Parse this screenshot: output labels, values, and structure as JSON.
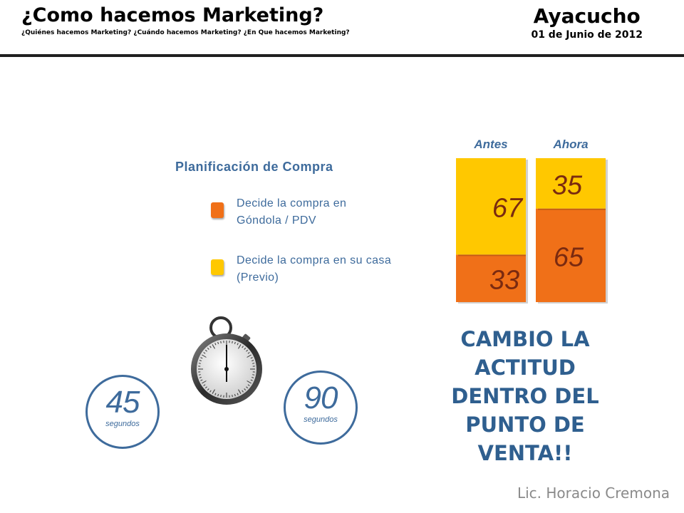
{
  "header": {
    "title": "¿Como hacemos Marketing?",
    "subtitle": "¿Quiénes hacemos Marketing? ¿Cuándo hacemos Marketing? ¿En Que hacemos Marketing?",
    "location": "Ayacucho",
    "date": "01 de Junio de 2012"
  },
  "legend": {
    "title": "Planificación de Compra",
    "items": [
      {
        "label": "Decide la compra en Góndola / PDV",
        "color": "#f07018"
      },
      {
        "label": "Decide la compra en su casa (Previo)",
        "color": "#ffc800"
      }
    ]
  },
  "chart_data": {
    "type": "bar",
    "stacked": true,
    "categories": [
      "Antes",
      "Ahora"
    ],
    "series": [
      {
        "name": "Decide la compra en Góndola / PDV",
        "values": [
          33,
          65
        ],
        "color": "#f07018"
      },
      {
        "name": "Decide la compra en su casa (Previo)",
        "values": [
          67,
          35
        ],
        "color": "#ffc800"
      }
    ],
    "ylim": [
      0,
      100
    ],
    "title": "Planificación de Compra",
    "xlabel": "",
    "ylabel": ""
  },
  "timers": [
    {
      "value": "45",
      "unit": "segundos"
    },
    {
      "value": "90",
      "unit": "segundos"
    }
  ],
  "message": "CAMBIO LA ACTITUD DENTRO DEL PUNTO DE VENTA!!",
  "footer": "Lic. Horacio Cremona"
}
